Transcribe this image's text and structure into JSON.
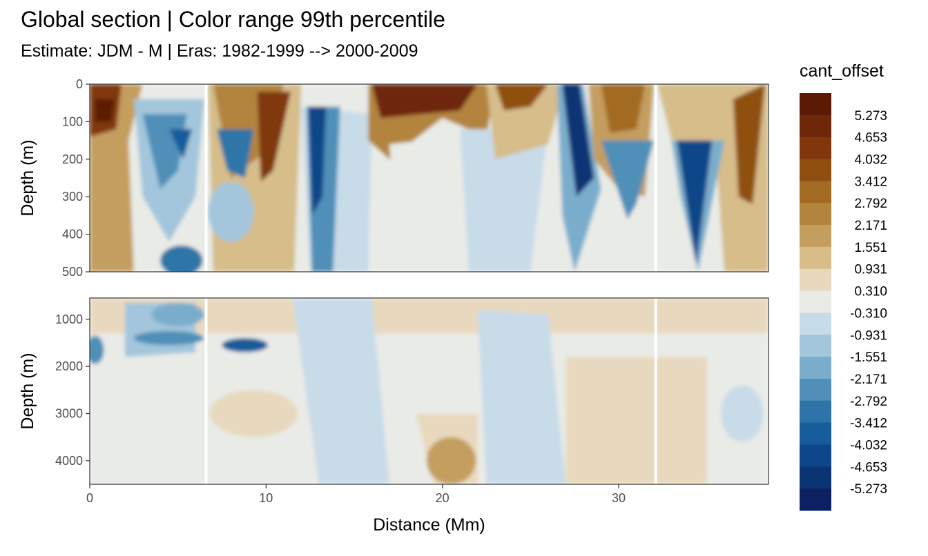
{
  "title": "Global section | Color range 99th percentile",
  "subtitle": "Estimate: JDM - M | Eras: 1982-1999 --> 2000-2009",
  "colors": {
    "brown_dark": "#5c1a05",
    "blue_dark": "#0b2163",
    "neutral": "#e9ebe7",
    "panel_border": "#333333",
    "grid": "#ebebeb",
    "section_gap": "#ffffff"
  },
  "chart_data": {
    "type": "heatmap",
    "xlabel": "Distance (Mm)",
    "x_range": [
      0,
      38.5
    ],
    "x_ticks": [
      0,
      10,
      20,
      30
    ],
    "x_tick_labels": [
      "0",
      "10",
      "20",
      "30"
    ],
    "section_gaps_x": [
      6.6,
      32.1
    ],
    "panels": [
      {
        "name": "upper",
        "ylabel": "Depth (m)",
        "y_range": [
          0,
          500
        ],
        "y_reversed": true,
        "y_ticks": [
          0,
          100,
          200,
          300,
          400,
          500
        ],
        "y_tick_labels": [
          "0",
          "100",
          "200",
          "300",
          "400",
          "500"
        ]
      },
      {
        "name": "lower",
        "ylabel": "Depth (m)",
        "y_range": [
          550,
          4500
        ],
        "y_reversed": true,
        "y_ticks": [
          1000,
          2000,
          3000,
          4000
        ],
        "y_tick_labels": [
          "1000",
          "2000",
          "3000",
          "4000"
        ]
      }
    ],
    "legend": {
      "title": "cant_offset",
      "position": "right",
      "labels": [
        "5.273",
        "4.653",
        "4.032",
        "3.412",
        "2.792",
        "2.171",
        "1.551",
        "0.931",
        "0.310",
        "-0.310",
        "-0.931",
        "-1.551",
        "-2.171",
        "-2.792",
        "-3.412",
        "-4.032",
        "-4.653",
        "-5.273"
      ],
      "colors": [
        "#5c1a05",
        "#6e2709",
        "#80380b",
        "#8f4f0f",
        "#a36a24",
        "#b3843e",
        "#c49e5e",
        "#d6bd8a",
        "#e8d9be",
        "#e9ebe7",
        "#c8dbe8",
        "#a3c6dc",
        "#7aadcc",
        "#4f8fb8",
        "#2d74a8",
        "#175c9a",
        "#0b4789",
        "#0a3474",
        "#0b2163"
      ]
    },
    "field_description": [
      {
        "x": [
          0,
          2.5
        ],
        "depth": [
          0,
          150
        ],
        "level": "brown_dark"
      },
      {
        "x": [
          2.5,
          6
        ],
        "depth": [
          0,
          400
        ],
        "level": "blue"
      },
      {
        "x": [
          7,
          12
        ],
        "depth": [
          0,
          400
        ],
        "level": "brown"
      },
      {
        "x": [
          12,
          16
        ],
        "depth": [
          0,
          500
        ],
        "level": "blue"
      },
      {
        "x": [
          16,
          22
        ],
        "depth": [
          0,
          150
        ],
        "level": "brown_dark"
      },
      {
        "x": [
          26.5,
          28.5
        ],
        "depth": [
          0,
          300
        ],
        "level": "blue_dark"
      },
      {
        "x": [
          28,
          32
        ],
        "depth": [
          0,
          200
        ],
        "level": "brown"
      },
      {
        "x": [
          33,
          35
        ],
        "depth": [
          150,
          500
        ],
        "level": "blue_dark"
      },
      {
        "x": [
          36,
          38.5
        ],
        "depth": [
          0,
          300
        ],
        "level": "brown"
      },
      {
        "x": [
          0,
          38.5
        ],
        "depth": [
          550,
          4500
        ],
        "level": "neutral"
      },
      {
        "x": [
          19.5,
          22
        ],
        "depth": [
          3500,
          4500
        ],
        "level": "brown"
      },
      {
        "x": [
          27,
          35
        ],
        "depth": [
          1700,
          4500
        ],
        "level": "light_brown"
      }
    ]
  }
}
